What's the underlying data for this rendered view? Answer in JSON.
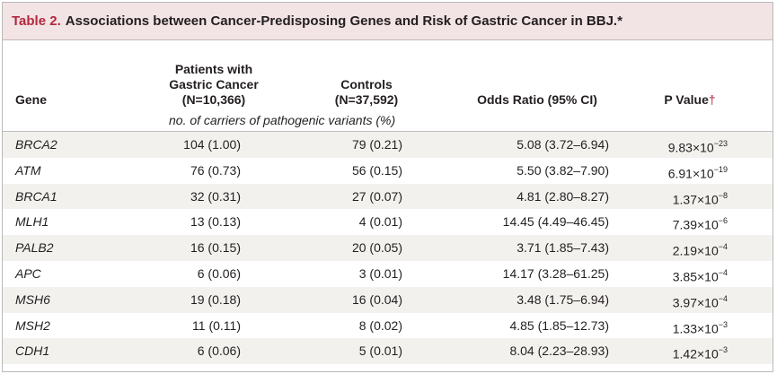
{
  "table": {
    "label": "Table 2.",
    "title": "Associations between Cancer-Predisposing Genes and Risk of Gastric Cancer in BBJ.*",
    "columns": {
      "gene": "Gene",
      "patients_line1": "Patients with",
      "patients_line2": "Gastric Cancer",
      "patients_line3": "(N=10,366)",
      "controls_line1": "Controls",
      "controls_line2": "(N=37,592)",
      "odds": "Odds Ratio (95% CI)",
      "pvalue": "P Value",
      "pvalue_mark": "†"
    },
    "units_note": "no. of carriers of pathogenic variants (%)",
    "rows": [
      {
        "gene": "BRCA2",
        "patients": "104 (1.00)",
        "controls": "79 (0.21)",
        "odds": "5.08 (3.72–6.94)",
        "p_base": "9.83×10",
        "p_exp": "−23"
      },
      {
        "gene": "ATM",
        "patients": "76 (0.73)",
        "controls": "56 (0.15)",
        "odds": "5.50 (3.82–7.90)",
        "p_base": "6.91×10",
        "p_exp": "−19"
      },
      {
        "gene": "BRCA1",
        "patients": "32 (0.31)",
        "controls": "27 (0.07)",
        "odds": "4.81 (2.80–8.27)",
        "p_base": "1.37×10",
        "p_exp": "−8"
      },
      {
        "gene": "MLH1",
        "patients": "13 (0.13)",
        "controls": "4 (0.01)",
        "odds": "14.45 (4.49–46.45)",
        "p_base": "7.39×10",
        "p_exp": "−6"
      },
      {
        "gene": "PALB2",
        "patients": "16 (0.15)",
        "controls": "20 (0.05)",
        "odds": "3.71 (1.85–7.43)",
        "p_base": "2.19×10",
        "p_exp": "−4"
      },
      {
        "gene": "APC",
        "patients": "6 (0.06)",
        "controls": "3 (0.01)",
        "odds": "14.17 (3.28–61.25)",
        "p_base": "3.85×10",
        "p_exp": "−4"
      },
      {
        "gene": "MSH6",
        "patients": "19 (0.18)",
        "controls": "16 (0.04)",
        "odds": "3.48 (1.75–6.94)",
        "p_base": "3.97×10",
        "p_exp": "−4"
      },
      {
        "gene": "MSH2",
        "patients": "11 (0.11)",
        "controls": "8 (0.02)",
        "odds": "4.85 (1.85–12.73)",
        "p_base": "1.33×10",
        "p_exp": "−3"
      },
      {
        "gene": "CDH1",
        "patients": "6 (0.06)",
        "controls": "5 (0.01)",
        "odds": "8.04 (2.23–28.93)",
        "p_base": "1.42×10",
        "p_exp": "−3"
      }
    ]
  },
  "colors": {
    "title_background": "#f2e3e4",
    "title_label": "#b3283e",
    "row_alt_background": "#f3f1ee"
  }
}
